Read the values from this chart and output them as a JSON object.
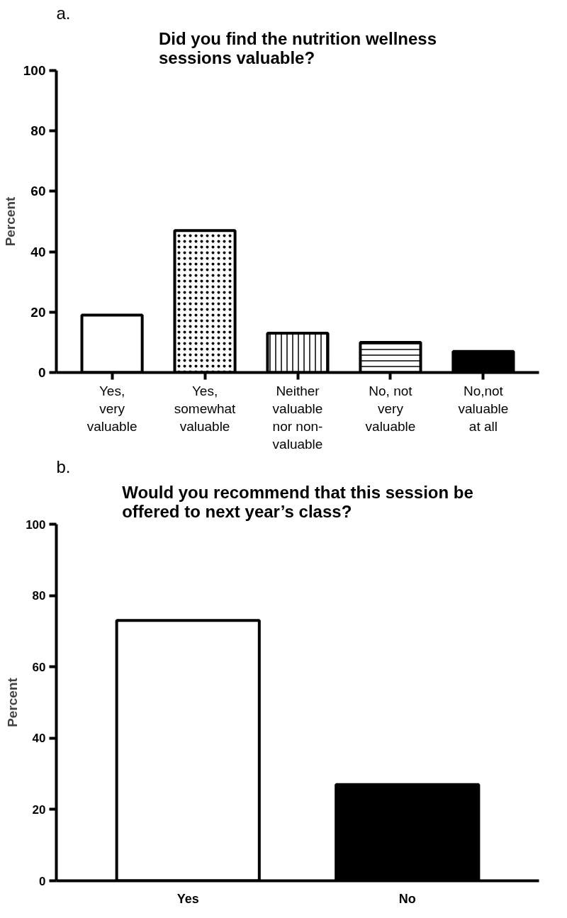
{
  "chart_data": [
    {
      "type": "bar",
      "title": "Did you find the nutrition wellness sessions valuable?",
      "ylabel": "Percent",
      "annotations": [
        "a."
      ],
      "categories": [
        "Yes,\nvery\nvaluable",
        "Yes,\nsomewhat\nvaluable",
        "Neither\nvaluable\nnor non-\nvaluable",
        "No, not\nvery\nvaluable",
        "No,not\nvaluable\nat all"
      ],
      "values": [
        19,
        47,
        13,
        10,
        7
      ],
      "colors": [
        "#ffffff",
        "#ffffff",
        "#ffffff",
        "#ffffff",
        "#000000"
      ],
      "ylim": [
        0,
        100
      ],
      "yticks": [
        0,
        20,
        40,
        60,
        80,
        100
      ],
      "grid": false
    },
    {
      "type": "bar",
      "title": "Would you recommend that this session be offered to next year’s class?",
      "ylabel": "Percent",
      "annotations": [
        "b."
      ],
      "categories": [
        "Yes",
        "No"
      ],
      "values": [
        73,
        27
      ],
      "colors": [
        "#ffffff",
        "#000000"
      ],
      "ylim": [
        0,
        100
      ],
      "yticks": [
        0,
        20,
        40,
        60,
        80,
        100
      ],
      "grid": false
    }
  ]
}
